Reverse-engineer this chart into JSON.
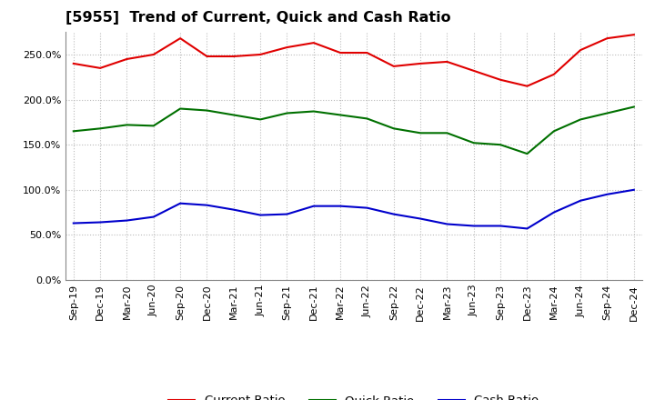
{
  "title": "[5955]  Trend of Current, Quick and Cash Ratio",
  "labels": [
    "Sep-19",
    "Dec-19",
    "Mar-20",
    "Jun-20",
    "Sep-20",
    "Dec-20",
    "Mar-21",
    "Jun-21",
    "Sep-21",
    "Dec-21",
    "Mar-22",
    "Jun-22",
    "Sep-22",
    "Dec-22",
    "Mar-23",
    "Jun-23",
    "Sep-23",
    "Dec-23",
    "Mar-24",
    "Jun-24",
    "Sep-24",
    "Dec-24"
  ],
  "current_ratio": [
    240,
    235,
    245,
    250,
    268,
    248,
    248,
    250,
    258,
    263,
    252,
    252,
    237,
    240,
    242,
    232,
    222,
    215,
    228,
    255,
    268,
    272
  ],
  "quick_ratio": [
    165,
    168,
    172,
    171,
    190,
    188,
    183,
    178,
    185,
    187,
    183,
    179,
    168,
    163,
    163,
    152,
    150,
    140,
    165,
    178,
    185,
    192
  ],
  "cash_ratio": [
    63,
    64,
    66,
    70,
    85,
    83,
    78,
    72,
    73,
    82,
    82,
    80,
    73,
    68,
    62,
    60,
    60,
    57,
    75,
    88,
    95,
    100
  ],
  "ylim": [
    0,
    275
  ],
  "yticks": [
    0,
    50,
    100,
    150,
    200,
    250
  ],
  "current_color": "#e00000",
  "quick_color": "#007000",
  "cash_color": "#0000cc",
  "bg_color": "#ffffff",
  "plot_bg_color": "#ffffff",
  "grid_color": "#bbbbbb",
  "title_fontsize": 11.5,
  "legend_fontsize": 9.5,
  "tick_fontsize": 8
}
